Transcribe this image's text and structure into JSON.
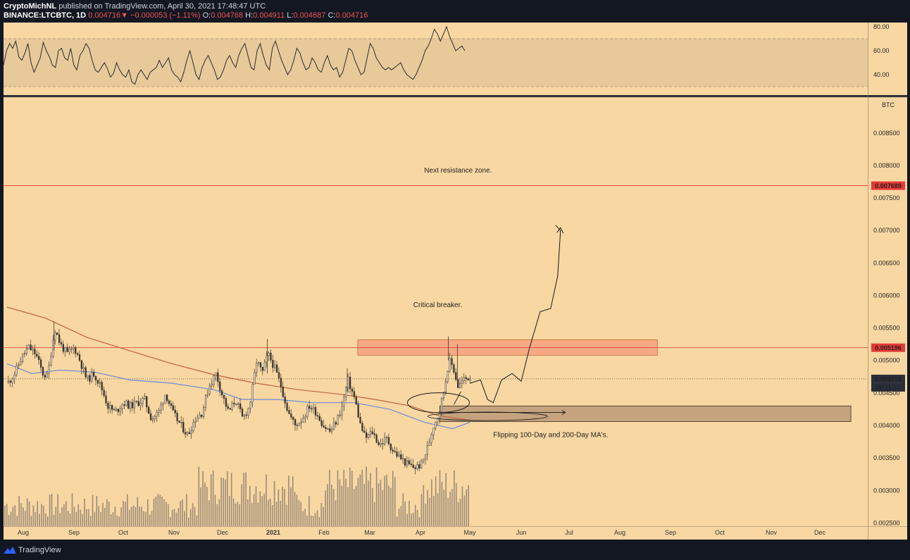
{
  "header": {
    "author": "CryptoMichNL",
    "published_text": "published on TradingView.com, April 30, 2021 17:48:47 UTC",
    "symbol": "BINANCE:LTCBTC, 1D",
    "last": "0.004716",
    "change": "−0.000053 (−1.11%)",
    "open_label": "O:",
    "open": "0.004768",
    "high_label": "H:",
    "high": "0.004911",
    "low_label": "L:",
    "low": "0.004687",
    "close_label": "C:",
    "close": "0.004716"
  },
  "footer": {
    "brand": "TradingView"
  },
  "colors": {
    "background": "#f8d7a2",
    "frame": "#131722",
    "candle": "#3a3530",
    "volume": "#9c8b78",
    "ma200": "#c2623c",
    "ma100": "#6a8bd8",
    "resistance_line": "#e53935",
    "resistance_box": "#f7a984",
    "support_box": "#c4a37e",
    "rsi_band": "#e8c99a"
  },
  "chart_data": [
    {
      "type": "line",
      "name": "RSI",
      "yaxis_ticks": [
        "80.00",
        "60.00",
        "40.00"
      ],
      "ylim": [
        28,
        82
      ],
      "band": [
        30,
        70
      ],
      "x_range": [
        0,
        660
      ],
      "values": [
        48,
        60,
        66,
        62,
        68,
        55,
        52,
        58,
        66,
        50,
        42,
        48,
        54,
        67,
        60,
        55,
        48,
        46,
        60,
        62,
        54,
        52,
        62,
        48,
        44,
        56,
        60,
        66,
        62,
        52,
        44,
        42,
        46,
        50,
        45,
        38,
        41,
        50,
        44,
        40,
        38,
        44,
        34,
        32,
        40,
        44,
        40,
        36,
        42,
        44,
        46,
        52,
        46,
        50,
        54,
        44,
        40,
        38,
        34,
        42,
        52,
        60,
        50,
        40,
        36,
        46,
        52,
        56,
        50,
        44,
        36,
        38,
        44,
        52,
        56,
        50,
        46,
        56,
        62,
        66,
        56,
        46,
        44,
        60,
        66,
        56,
        48,
        44,
        62,
        68,
        60,
        52,
        46,
        40,
        44,
        52,
        62,
        58,
        50,
        44,
        46,
        54,
        50,
        44,
        42,
        50,
        56,
        48,
        44,
        46,
        38,
        42,
        52,
        62,
        60,
        52,
        46,
        40,
        42,
        54,
        66,
        62,
        54,
        50,
        46,
        44,
        46,
        44,
        46,
        48,
        50,
        44,
        40,
        38,
        36,
        40,
        46,
        52,
        60,
        64,
        70,
        78,
        74,
        68,
        74,
        80,
        72,
        66,
        60,
        62,
        64,
        60
      ],
      "xlim": [
        0,
        665
      ]
    },
    {
      "type": "candlestick",
      "name": "LTCBTC",
      "currency_label": "BTC",
      "ylim": [
        0.00245,
        0.00905
      ],
      "yaxis_ticks": [
        "0.008500",
        "0.008000",
        "0.007500",
        "0.007000",
        "0.006500",
        "0.006000",
        "0.005500",
        "0.005000",
        "0.004500",
        "0.004000",
        "0.003500",
        "0.003000",
        "0.002500"
      ],
      "x_labels": [
        "Aug",
        "Sep",
        "Oct",
        "Nov",
        "Dec",
        "2021",
        "Feb",
        "Mar",
        "Apr",
        "May",
        "Jun",
        "Jul",
        "Aug",
        "Sep",
        "Oct",
        "Nov",
        "Dec"
      ],
      "x_label_pos": [
        33,
        105,
        175,
        247,
        316,
        388,
        460,
        525,
        597,
        667,
        740,
        808,
        880,
        952,
        1022,
        1095,
        1164
      ],
      "close_path": [
        [
          5,
          0.00465
        ],
        [
          15,
          0.0048
        ],
        [
          25,
          0.00505
        ],
        [
          35,
          0.0052
        ],
        [
          45,
          0.0051
        ],
        [
          55,
          0.0048
        ],
        [
          62,
          0.00475
        ],
        [
          72,
          0.0055
        ],
        [
          80,
          0.00525
        ],
        [
          90,
          0.0051
        ],
        [
          100,
          0.0052
        ],
        [
          108,
          0.005
        ],
        [
          118,
          0.0047
        ],
        [
          128,
          0.0048
        ],
        [
          138,
          0.0046
        ],
        [
          148,
          0.0043
        ],
        [
          158,
          0.0042
        ],
        [
          170,
          0.00435
        ],
        [
          180,
          0.0043
        ],
        [
          190,
          0.00435
        ],
        [
          200,
          0.0044
        ],
        [
          210,
          0.0041
        ],
        [
          220,
          0.0042
        ],
        [
          230,
          0.0045
        ],
        [
          240,
          0.0042
        ],
        [
          252,
          0.004
        ],
        [
          262,
          0.00385
        ],
        [
          272,
          0.0041
        ],
        [
          282,
          0.0042
        ],
        [
          292,
          0.0046
        ],
        [
          302,
          0.0048
        ],
        [
          310,
          0.0045
        ],
        [
          320,
          0.0042
        ],
        [
          330,
          0.0044
        ],
        [
          340,
          0.0041
        ],
        [
          350,
          0.0043
        ],
        [
          360,
          0.005
        ],
        [
          368,
          0.0048
        ],
        [
          376,
          0.0051
        ],
        [
          385,
          0.0049
        ],
        [
          395,
          0.0046
        ],
        [
          405,
          0.0042
        ],
        [
          415,
          0.004
        ],
        [
          425,
          0.0041
        ],
        [
          435,
          0.0043
        ],
        [
          445,
          0.0042
        ],
        [
          455,
          0.004
        ],
        [
          465,
          0.0039
        ],
        [
          475,
          0.0041
        ],
        [
          482,
          0.0043
        ],
        [
          490,
          0.0047
        ],
        [
          500,
          0.0044
        ],
        [
          508,
          0.004
        ],
        [
          515,
          0.0038
        ],
        [
          525,
          0.0039
        ],
        [
          535,
          0.0037
        ],
        [
          545,
          0.0038
        ],
        [
          555,
          0.0036
        ],
        [
          565,
          0.0035
        ],
        [
          575,
          0.0034
        ],
        [
          585,
          0.00335
        ],
        [
          595,
          0.0034
        ],
        [
          605,
          0.0037
        ],
        [
          612,
          0.004
        ],
        [
          620,
          0.0042
        ],
        [
          628,
          0.0046
        ],
        [
          634,
          0.005
        ],
        [
          640,
          0.0049
        ],
        [
          647,
          0.0046
        ],
        [
          655,
          0.0047
        ],
        [
          665,
          0.00475
        ]
      ],
      "ma200": [
        [
          5,
          0.00582
        ],
        [
          60,
          0.00565
        ],
        [
          120,
          0.00535
        ],
        [
          180,
          0.00515
        ],
        [
          240,
          0.00495
        ],
        [
          300,
          0.00478
        ],
        [
          360,
          0.00465
        ],
        [
          420,
          0.00455
        ],
        [
          480,
          0.00448
        ],
        [
          530,
          0.0044
        ],
        [
          580,
          0.0043
        ],
        [
          620,
          0.00415
        ],
        [
          665,
          0.00408
        ]
      ],
      "ma100": [
        [
          5,
          0.00495
        ],
        [
          40,
          0.0048
        ],
        [
          80,
          0.00485
        ],
        [
          130,
          0.00482
        ],
        [
          180,
          0.0047
        ],
        [
          240,
          0.00465
        ],
        [
          300,
          0.00455
        ],
        [
          340,
          0.0044
        ],
        [
          390,
          0.0044
        ],
        [
          440,
          0.00435
        ],
        [
          500,
          0.00435
        ],
        [
          550,
          0.00425
        ],
        [
          600,
          0.00405
        ],
        [
          640,
          0.00395
        ],
        [
          665,
          0.00405
        ]
      ],
      "resistance_line": 0.007689,
      "resistance_line_label": "0.007689",
      "breaker_line": 0.005196,
      "breaker_line_label": "0.005196",
      "last_price": 0.004716,
      "last_price_label": "0.004716",
      "countdown_label": "06:11:15",
      "resistance_box": {
        "x": [
          505,
          932
        ],
        "y": [
          0.00508,
          0.00532
        ]
      },
      "support_box": {
        "x": [
          622,
          1208
        ],
        "y": [
          0.00406,
          0.0043
        ]
      },
      "projection_path": [
        [
          665,
          0.00465
        ],
        [
          680,
          0.0047
        ],
        [
          690,
          0.0044
        ],
        [
          698,
          0.00435
        ],
        [
          710,
          0.0047
        ],
        [
          725,
          0.0048
        ],
        [
          738,
          0.00468
        ],
        [
          750,
          0.0052
        ],
        [
          765,
          0.00575
        ],
        [
          780,
          0.0058
        ],
        [
          790,
          0.0063
        ],
        [
          794,
          0.007
        ],
        [
          787,
          0.00708
        ]
      ],
      "annotations": [
        {
          "text": "Next resistance zone.",
          "x": 648,
          "y": 0.00789
        },
        {
          "text": "Critical breaker.",
          "x": 619,
          "y": 0.00582
        },
        {
          "text": "Flipping 100-Day and 200-Day MA's.",
          "x": 780,
          "y": 0.00382
        }
      ],
      "xlim": [
        0,
        1232
      ]
    }
  ]
}
